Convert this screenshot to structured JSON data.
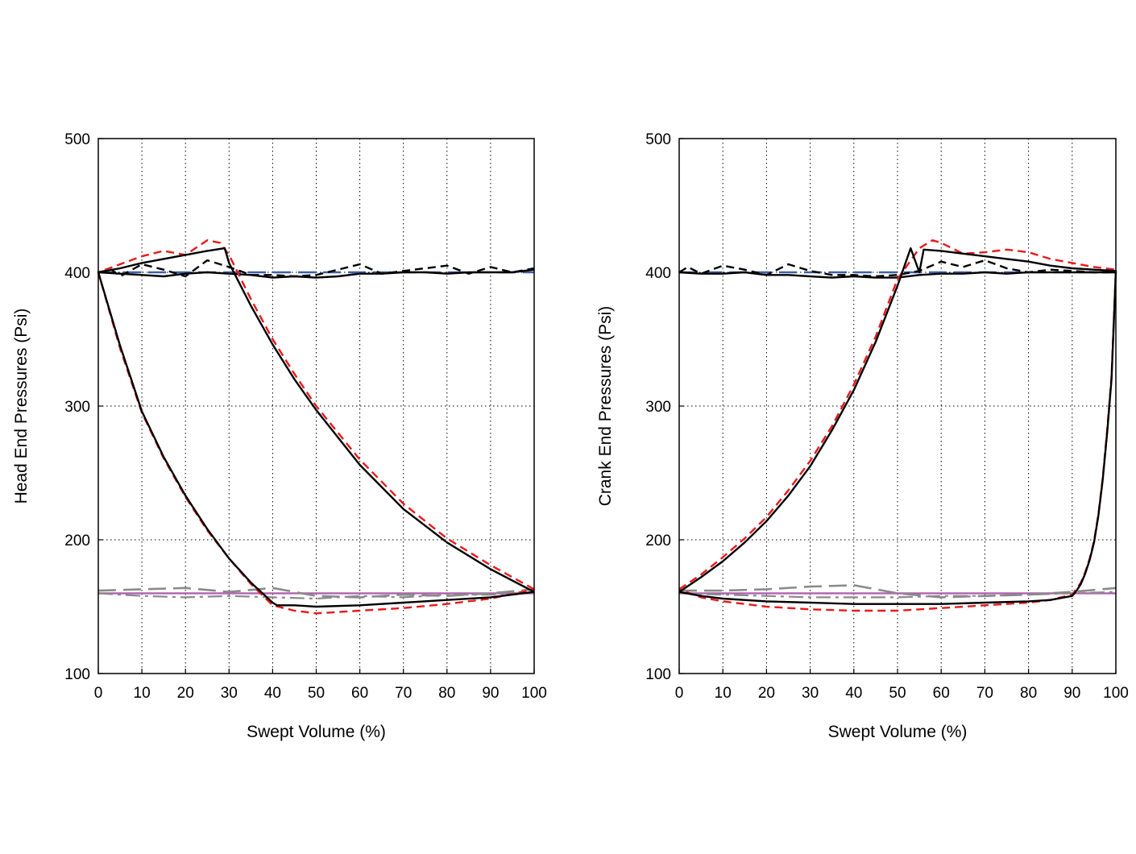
{
  "colors": {
    "measured": "#000000",
    "model": "#e8191c",
    "discharge_pressure": "#4060a8",
    "suction_pressure": "#b060b0",
    "measured_suction_dashed": "#8a8a8a",
    "grid": "#000000"
  },
  "chart_data": [
    {
      "type": "line",
      "xlabel": "Swept Volume (%)",
      "ylabel": "Head End Pressures (Psi)",
      "xlim": [
        0,
        100
      ],
      "ylim": [
        100,
        500
      ],
      "x_ticks": [
        "0",
        "10",
        "20",
        "30",
        "40",
        "50",
        "60",
        "70",
        "80",
        "90",
        "100"
      ],
      "y_ticks": [
        "100",
        "200",
        "300",
        "400",
        "500"
      ],
      "grid": "dotted",
      "series": [
        {
          "style": "solid",
          "color_key": "measured",
          "x": [
            100,
            90,
            80,
            70,
            60,
            50,
            45,
            40,
            35,
            30,
            29,
            25,
            20,
            15,
            10,
            5,
            0,
            5,
            10,
            15,
            20,
            25,
            30,
            35,
            40,
            41,
            45,
            50,
            60,
            70,
            80,
            90,
            100
          ],
          "y": [
            161,
            178,
            198,
            223,
            256,
            297,
            320,
            346,
            375,
            407,
            418,
            416,
            413,
            410,
            407,
            403,
            400,
            345,
            296,
            262,
            233,
            208,
            186,
            168,
            153,
            151,
            151,
            150,
            151,
            153,
            155,
            157,
            161
          ]
        },
        {
          "style": "dashed",
          "color_key": "model",
          "x": [
            100,
            90,
            80,
            70,
            60,
            50,
            45,
            40,
            35,
            30,
            28,
            25,
            20,
            15,
            10,
            5,
            0,
            5,
            10,
            15,
            20,
            25,
            30,
            35,
            40,
            45,
            50,
            60,
            70,
            80,
            90,
            100
          ],
          "y": [
            163,
            181,
            201,
            227,
            260,
            300,
            324,
            350,
            380,
            413,
            422,
            424,
            413,
            416,
            412,
            406,
            400,
            343,
            295,
            261,
            232,
            207,
            186,
            167,
            151,
            147,
            145,
            147,
            149,
            152,
            156,
            163
          ]
        },
        {
          "style": "solid",
          "color_key": "measured",
          "x": [
            0,
            5,
            10,
            15,
            20,
            25,
            30,
            35,
            40,
            45,
            50,
            55,
            60,
            65,
            70,
            75,
            80,
            85,
            90,
            95,
            100
          ],
          "y": [
            400,
            399,
            398,
            397,
            399,
            400,
            399,
            398,
            396,
            397,
            396,
            397,
            399,
            399,
            400,
            400,
            399,
            400,
            400,
            400,
            402
          ]
        },
        {
          "style": "dashed",
          "color_key": "measured",
          "x": [
            0,
            3,
            5,
            10,
            15,
            20,
            25,
            30,
            35,
            40,
            45,
            50,
            55,
            60,
            65,
            70,
            75,
            80,
            85,
            90,
            95,
            100
          ],
          "y": [
            400,
            402,
            397,
            406,
            402,
            397,
            409,
            404,
            398,
            398,
            397,
            398,
            402,
            406,
            399,
            401,
            403,
            405,
            399,
            404,
            400,
            403
          ]
        },
        {
          "style": "longdash",
          "color_key": "discharge_pressure",
          "x": [
            0,
            100
          ],
          "y": [
            400,
            400
          ]
        },
        {
          "style": "solid",
          "color_key": "suction_pressure",
          "x": [
            0,
            100
          ],
          "y": [
            160,
            160
          ]
        },
        {
          "style": "longdash",
          "color_key": "measured_suction_dashed",
          "x": [
            0,
            10,
            20,
            30,
            40,
            50,
            60,
            70,
            80,
            90,
            100
          ],
          "y": [
            162,
            163,
            164,
            161,
            164,
            158,
            157,
            159,
            158,
            160,
            163
          ]
        },
        {
          "style": "dashdot",
          "color_key": "measured_suction_dashed",
          "x": [
            0,
            10,
            20,
            30,
            40,
            50,
            60,
            70,
            80,
            90,
            100
          ],
          "y": [
            160,
            158,
            157,
            158,
            157,
            156,
            158,
            157,
            159,
            159,
            161
          ]
        }
      ]
    },
    {
      "type": "line",
      "xlabel": "Swept Volume (%)",
      "ylabel": "Crank End Pressures (Psi)",
      "xlim": [
        0,
        100
      ],
      "ylim": [
        100,
        500
      ],
      "x_ticks": [
        "0",
        "10",
        "20",
        "30",
        "40",
        "50",
        "60",
        "70",
        "80",
        "90",
        "100"
      ],
      "y_ticks": [
        "100",
        "200",
        "300",
        "400",
        "500"
      ],
      "grid": "dotted",
      "series": [
        {
          "style": "solid",
          "color_key": "measured",
          "x": [
            0,
            5,
            10,
            15,
            20,
            25,
            30,
            35,
            40,
            45,
            50,
            53,
            55,
            56,
            60,
            65,
            70,
            75,
            80,
            85,
            90,
            95,
            100,
            99.5,
            99,
            98,
            97,
            96,
            95,
            94,
            93,
            92,
            91,
            90,
            85,
            80,
            70,
            60,
            50,
            40,
            30,
            20,
            10,
            5,
            0
          ],
          "y": [
            161,
            172,
            184,
            198,
            214,
            233,
            255,
            282,
            312,
            348,
            390,
            418,
            400,
            417,
            416,
            414,
            412,
            410,
            408,
            405,
            403,
            402,
            401,
            360,
            320,
            280,
            245,
            218,
            198,
            185,
            175,
            167,
            162,
            158,
            155,
            154,
            153,
            152,
            152,
            152,
            153,
            154,
            156,
            158,
            161
          ]
        },
        {
          "style": "dashed",
          "color_key": "model",
          "x": [
            0,
            5,
            10,
            15,
            20,
            25,
            30,
            35,
            40,
            45,
            50,
            55,
            58,
            60,
            65,
            70,
            75,
            80,
            85,
            90,
            95,
            100,
            99.5,
            99,
            98,
            97,
            96,
            95,
            94,
            93,
            92,
            90,
            85,
            80,
            70,
            60,
            50,
            40,
            30,
            20,
            10,
            5,
            0
          ],
          "y": [
            163,
            174,
            187,
            201,
            217,
            237,
            259,
            285,
            316,
            352,
            395,
            418,
            424,
            422,
            414,
            415,
            417,
            415,
            410,
            407,
            404,
            402,
            362,
            322,
            282,
            246,
            219,
            199,
            186,
            176,
            168,
            159,
            155,
            153,
            151,
            149,
            147,
            147,
            148,
            150,
            154,
            157,
            163
          ]
        },
        {
          "style": "solid",
          "color_key": "measured",
          "x": [
            0,
            5,
            10,
            15,
            20,
            25,
            30,
            35,
            40,
            45,
            50,
            55,
            60,
            65,
            70,
            75,
            80,
            85,
            90,
            95,
            100
          ],
          "y": [
            400,
            399,
            399,
            400,
            398,
            398,
            397,
            396,
            397,
            396,
            396,
            398,
            399,
            399,
            400,
            399,
            400,
            400,
            400,
            400,
            400
          ]
        },
        {
          "style": "dashed",
          "color_key": "measured",
          "x": [
            0,
            2,
            5,
            10,
            15,
            20,
            25,
            30,
            35,
            40,
            45,
            50,
            55,
            60,
            65,
            70,
            75,
            80,
            85,
            90,
            95,
            100
          ],
          "y": [
            400,
            404,
            399,
            405,
            402,
            398,
            406,
            401,
            398,
            398,
            397,
            398,
            401,
            408,
            404,
            409,
            403,
            400,
            402,
            401,
            400,
            400
          ]
        },
        {
          "style": "longdash",
          "color_key": "discharge_pressure",
          "x": [
            0,
            100
          ],
          "y": [
            400,
            400
          ]
        },
        {
          "style": "solid",
          "color_key": "suction_pressure",
          "x": [
            0,
            100
          ],
          "y": [
            160,
            160
          ]
        },
        {
          "style": "longdash",
          "color_key": "measured_suction_dashed",
          "x": [
            0,
            10,
            20,
            30,
            40,
            50,
            60,
            70,
            80,
            90,
            100
          ],
          "y": [
            162,
            162,
            163,
            165,
            166,
            160,
            157,
            158,
            159,
            161,
            164
          ]
        },
        {
          "style": "dashdot",
          "color_key": "measured_suction_dashed",
          "x": [
            0,
            10,
            20,
            30,
            40,
            50,
            60,
            70,
            80,
            90,
            100
          ],
          "y": [
            160,
            159,
            158,
            157,
            157,
            157,
            158,
            158,
            159,
            160,
            161
          ]
        }
      ]
    }
  ]
}
